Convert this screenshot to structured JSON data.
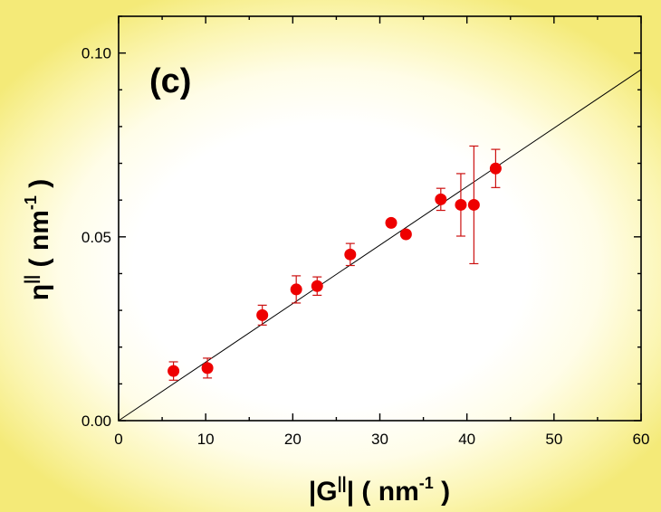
{
  "chart_data": {
    "type": "scatter",
    "panel_label": "(c)",
    "xlabel": {
      "main": "|G",
      "superscript": "||",
      "rest": "|  ( nm",
      "unit_sup": "-1",
      "close": " )"
    },
    "ylabel": {
      "main": "η",
      "superscript": "||",
      "rest": "  ( nm",
      "unit_sup": "-1",
      "close": " )"
    },
    "xlim": [
      0,
      60
    ],
    "ylim": [
      0,
      0.11
    ],
    "x_ticks": [
      0,
      10,
      20,
      30,
      40,
      50,
      60
    ],
    "x_tick_labels": [
      "0",
      "10",
      "20",
      "30",
      "40",
      "50",
      "60"
    ],
    "y_ticks": [
      0,
      0.05,
      0.1
    ],
    "y_tick_labels": [
      "0.00",
      "0.05",
      "0.10"
    ],
    "grid": false,
    "marker_color": "#ee0000",
    "errorbar_color": "#cc1111",
    "series": [
      {
        "points": [
          {
            "x": 6.3,
            "y": 0.0135,
            "err": 0.0025
          },
          {
            "x": 10.2,
            "y": 0.0143,
            "err": 0.0027
          },
          {
            "x": 16.5,
            "y": 0.0287,
            "err": 0.0027
          },
          {
            "x": 20.4,
            "y": 0.0357,
            "err": 0.0037
          },
          {
            "x": 22.8,
            "y": 0.0366,
            "err": 0.0025
          },
          {
            "x": 26.6,
            "y": 0.0452,
            "err": 0.003
          },
          {
            "x": 31.3,
            "y": 0.0538,
            "err": 0
          },
          {
            "x": 33.0,
            "y": 0.0507,
            "err": 0
          },
          {
            "x": 37.0,
            "y": 0.0602,
            "err": 0.003
          },
          {
            "x": 39.3,
            "y": 0.0587,
            "err": 0.0085
          },
          {
            "x": 40.8,
            "y": 0.0587,
            "err": 0.016
          },
          {
            "x": 43.3,
            "y": 0.0686,
            "err": 0.0052
          }
        ]
      }
    ],
    "fit_line": {
      "x": [
        0,
        60
      ],
      "y": [
        0,
        0.0955
      ]
    }
  }
}
